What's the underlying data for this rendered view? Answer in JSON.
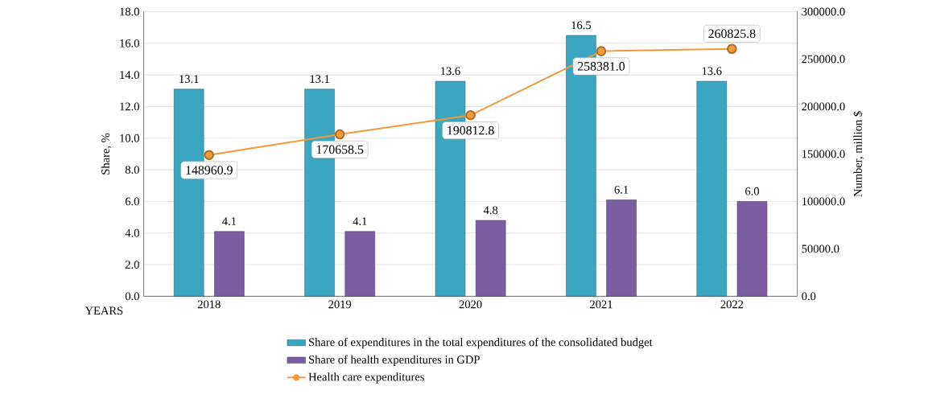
{
  "chart_data": {
    "type": "bar",
    "categories": [
      "2018",
      "2019",
      "2020",
      "2021",
      "2022"
    ],
    "xlabel": "YEARS",
    "ylabel": "Share, %",
    "y2label": "Number, million $",
    "series": [
      {
        "name": "Share of expenditures in the total expenditures of the consolidated budget",
        "color": "#3aa6bf",
        "values": [
          13.1,
          13.1,
          13.6,
          16.5,
          13.6
        ],
        "value_labels": [
          "13.1",
          "13.1",
          "13.6",
          "16.5",
          "13.6"
        ]
      },
      {
        "name": "Share of health expenditures in GDP",
        "color": "#7b5ea1",
        "values": [
          4.1,
          4.1,
          4.8,
          6.1,
          6.0
        ],
        "value_labels": [
          "4.1",
          "4.1",
          "4.8",
          "6.1",
          "6.0"
        ]
      },
      {
        "name": "Health care expenditures",
        "type": "line",
        "axis": "y2",
        "marker": "circle",
        "color": "#f29a3b",
        "values": [
          148960.9,
          170658.5,
          190812.8,
          258381.0,
          260825.8
        ],
        "value_labels": [
          "148960.9",
          "170658.5",
          "190812.8",
          "258381.0",
          "260825.8"
        ]
      }
    ],
    "ylim": [
      0,
      18
    ],
    "yticks": [
      {
        "value": 0,
        "label": "0.0"
      },
      {
        "value": 2,
        "label": "2.0"
      },
      {
        "value": 4,
        "label": "4.0"
      },
      {
        "value": 6,
        "label": "6.0"
      },
      {
        "value": 8,
        "label": "8.0"
      },
      {
        "value": 10,
        "label": "10.0"
      },
      {
        "value": 12,
        "label": "12.0"
      },
      {
        "value": 14,
        "label": "14.0"
      },
      {
        "value": 16,
        "label": "16.0"
      },
      {
        "value": 18,
        "label": "18.0"
      }
    ],
    "y2lim": [
      0,
      300000
    ],
    "y2ticks": [
      {
        "value": 0,
        "label": "0.0"
      },
      {
        "value": 50000,
        "label": "50000.0"
      },
      {
        "value": 100000,
        "label": "100000.0"
      },
      {
        "value": 150000,
        "label": "150000.0"
      },
      {
        "value": 200000,
        "label": "200000.0"
      },
      {
        "value": 250000,
        "label": "250000.0"
      },
      {
        "value": 300000,
        "label": "300000.0"
      }
    ],
    "grid": "y",
    "legend": "bottom"
  }
}
